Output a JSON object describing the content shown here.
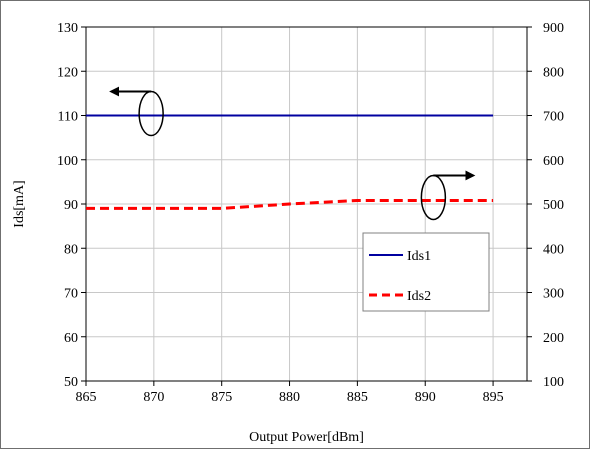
{
  "chart_data": {
    "type": "line",
    "xlabel": "Output Power[dBm]",
    "ylabel": "Ids[mA]",
    "y2label": "",
    "xlim": [
      865,
      897.5
    ],
    "ylim": [
      50,
      130
    ],
    "y2lim": [
      100,
      900
    ],
    "x_ticks": [
      "865",
      "870",
      "875",
      "880",
      "885",
      "890",
      "895"
    ],
    "y_ticks": [
      "50",
      "60",
      "70",
      "80",
      "90",
      "100",
      "110",
      "120",
      "130"
    ],
    "y2_ticks": [
      "100",
      "200",
      "300",
      "400",
      "500",
      "600",
      "700",
      "800",
      "900"
    ],
    "grid": true,
    "legend_position": "inside-right",
    "series": [
      {
        "name": "Ids1",
        "axis": "left",
        "color": "#0000a0",
        "style": "solid",
        "x": [
          865,
          870,
          875,
          880,
          885,
          890,
          895
        ],
        "y": [
          110,
          110,
          110,
          110,
          110,
          110,
          110
        ]
      },
      {
        "name": "Ids2",
        "axis": "right",
        "color": "#ff0000",
        "style": "dashed",
        "x": [
          865,
          870,
          875,
          880,
          885,
          890,
          895
        ],
        "y": [
          490,
          490,
          490,
          500,
          508,
          508,
          508
        ]
      }
    ],
    "annotations": [
      {
        "type": "arrow-left",
        "target_axis": "left",
        "near_series": "Ids1"
      },
      {
        "type": "arrow-right",
        "target_axis": "right",
        "near_series": "Ids2"
      }
    ]
  }
}
